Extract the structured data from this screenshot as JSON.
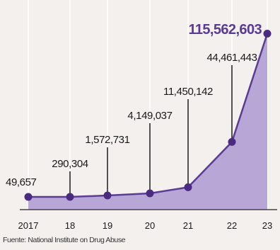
{
  "chart_data": {
    "type": "area",
    "x": [
      "2017",
      "18",
      "19",
      "20",
      "21",
      "22",
      "23"
    ],
    "values": [
      49657,
      290304,
      1572731,
      4149037,
      11450142,
      44461443,
      115562603
    ],
    "value_labels": [
      "49,657",
      "290,304",
      "1,572,731",
      "4,149,037",
      "11,450,142",
      "44,461,443",
      "115,562,603"
    ],
    "title": "",
    "xlabel": "",
    "ylabel": "",
    "ylim": [
      0,
      120000000
    ],
    "grid": true,
    "legend": "none",
    "colors": {
      "fill": "#b8a7d6",
      "line": "#5c3b93",
      "marker": "#4b2b82",
      "highlight_label": "#5a3a93",
      "label": "#1a1a1a",
      "grid": "#ffffff"
    }
  },
  "source": "Fuente: National Institute on Drug Abuse"
}
